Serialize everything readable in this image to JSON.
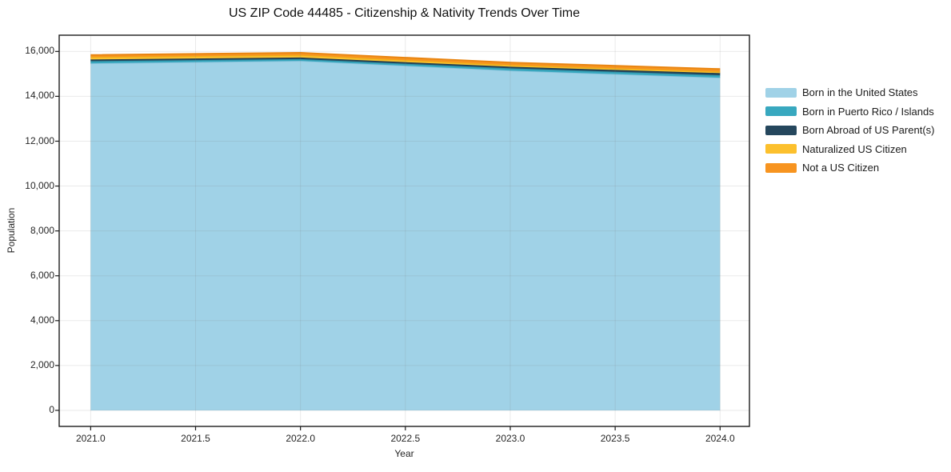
{
  "figure": {
    "title": "US ZIP Code 44485 - Citizenship & Nativity Trends Over Time"
  },
  "chart_data": {
    "type": "area",
    "stacked": true,
    "title": "US ZIP Code 44485 - Citizenship & Nativity Trends Over Time",
    "xlabel": "Year",
    "ylabel": "Population",
    "x": [
      2021,
      2022,
      2023,
      2024
    ],
    "series": [
      {
        "name": "Born in the United States",
        "color": "#a0d2e7",
        "edge_color": "#8bc4dd",
        "values": [
          15470,
          15580,
          15150,
          14830
        ]
      },
      {
        "name": "Born in Puerto Rico / Islands",
        "color": "#38a8bf",
        "edge_color": "#2f93a8",
        "values": [
          100,
          80,
          100,
          110
        ]
      },
      {
        "name": "Born Abroad of US Parent(s)",
        "color": "#25475d",
        "edge_color": "#1d3a4d",
        "values": [
          70,
          70,
          70,
          95
        ]
      },
      {
        "name": "Naturalized US Citizen",
        "color": "#fcc02d",
        "edge_color": "#eead15",
        "values": [
          110,
          110,
          80,
          75
        ]
      },
      {
        "name": "Not a US Citizen",
        "color": "#f79420",
        "edge_color": "#e88410",
        "values": [
          95,
          105,
          110,
          110
        ]
      }
    ],
    "totals": [
      15845,
      15945,
      15510,
      15220
    ],
    "xlim": [
      2020.85,
      2024.14
    ],
    "ylim": [
      -715,
      16725
    ],
    "x_tick_values": [
      2021.0,
      2021.5,
      2022.0,
      2022.5,
      2023.0,
      2023.5,
      2024.0
    ],
    "x_tick_labels": [
      "2021.0",
      "2021.5",
      "2022.0",
      "2022.5",
      "2023.0",
      "2023.5",
      "2024.0"
    ],
    "y_tick_values": [
      0,
      2000,
      4000,
      6000,
      8000,
      10000,
      12000,
      14000,
      16000
    ],
    "y_tick_labels": [
      "0",
      "2,000",
      "4,000",
      "6,000",
      "8,000",
      "10,000",
      "12,000",
      "14,000",
      "16,000"
    ],
    "grid": true,
    "legend_position": "outside-upper-right"
  },
  "colors": {
    "background": "#ffffff",
    "spine": "#1c1c1c",
    "grid_overlay": "rgba(125,125,125,0.16)",
    "tick_mark": "#1c1c1c"
  }
}
